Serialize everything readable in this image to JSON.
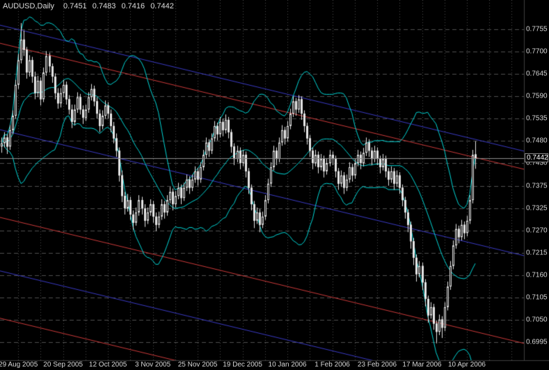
{
  "header": {
    "symbol_period": "AUDUSD,Daily",
    "ohlc": {
      "open": "0.7451",
      "high": "0.7483",
      "low": "0.7416",
      "close": "0.7442"
    }
  },
  "price_axis": {
    "current_price_badge": "0.7442"
  },
  "colors": {
    "background": "#000000",
    "grid": "#4f4f4f",
    "candle_outline": "#e6e6e6",
    "bull_fill": "#000000",
    "bear_fill": "#e6e6e6",
    "bands": "#00d8d8",
    "channel_red": "#cc3a3a",
    "channel_blue": "#3a3ac4",
    "text": "#d6d6d6",
    "bid_line": "#8c8c8c"
  },
  "chart_data": {
    "type": "candlestick",
    "symbol": "AUDUSD",
    "timeframe": "Daily",
    "title": "AUDUSD,Daily 0.7451 0.7483 0.7416 0.7442",
    "current_price": 0.7442,
    "current_ohlc": [
      0.7451,
      0.7483,
      0.7416,
      0.7442
    ],
    "grid": {
      "horizontal_style": "dashed",
      "vertical_style": "dotted"
    },
    "y_axis": {
      "top_price": 0.7755,
      "bottom_price": 0.6995,
      "ylim": [
        0.6985,
        0.7775
      ],
      "tick_labels": [
        "0.7755",
        "0.7700",
        "0.7645",
        "0.7590",
        "0.7535",
        "0.7480",
        "0.7430",
        "0.7375",
        "0.7325",
        "0.7270",
        "0.7215",
        "0.7160",
        "0.7105",
        "0.7050",
        "0.6995"
      ]
    },
    "x_axis": {
      "bars_total": 170,
      "bars_per_label": 16,
      "labels": [
        {
          "label": "29 Aug 2005",
          "bar": 6
        },
        {
          "label": "20 Sep 2005",
          "bar": 22
        },
        {
          "label": "12 Oct 2005",
          "bar": 38
        },
        {
          "label": "3 Nov 2005",
          "bar": 54
        },
        {
          "label": "25 Nov 2005",
          "bar": 70
        },
        {
          "label": "19 Dec 2005",
          "bar": 86
        },
        {
          "label": "10 Jan 2006",
          "bar": 102
        },
        {
          "label": "1 Feb 2006",
          "bar": 118
        },
        {
          "label": "23 Feb 2006",
          "bar": 134
        },
        {
          "label": "17 Mar 2006",
          "bar": 150
        },
        {
          "label": "10 Apr 2006",
          "bar": 166
        }
      ]
    },
    "overlays": {
      "bollinger_bands": {
        "period": 20,
        "deviation": 2,
        "color": "#00d8d8",
        "lines": [
          "upper",
          "middle",
          "lower"
        ]
      },
      "channel_lines": [
        {
          "color": "blue",
          "price_left": 0.7765,
          "price_right": 0.7459
        },
        {
          "color": "red",
          "price_left": 0.7721,
          "price_right": 0.7415
        },
        {
          "color": "blue",
          "price_left": 0.7511,
          "price_right": 0.7205
        },
        {
          "color": "red",
          "price_left": 0.7298,
          "price_right": 0.6992
        },
        {
          "color": "blue",
          "price_left": 0.7168,
          "price_right": 0.6862
        },
        {
          "color": "red",
          "price_left": 0.7053,
          "price_right": 0.6747
        }
      ]
    },
    "candles": [
      [
        0.747,
        0.7492,
        0.7455,
        0.7478
      ],
      [
        0.7478,
        0.7505,
        0.7468,
        0.7492
      ],
      [
        0.7492,
        0.75,
        0.7452,
        0.747
      ],
      [
        0.747,
        0.7522,
        0.7462,
        0.751
      ],
      [
        0.751,
        0.7558,
        0.75,
        0.7545
      ],
      [
        0.7545,
        0.7632,
        0.7538,
        0.762
      ],
      [
        0.762,
        0.7695,
        0.761,
        0.768
      ],
      [
        0.768,
        0.777,
        0.7672,
        0.773
      ],
      [
        0.773,
        0.7752,
        0.769,
        0.7705
      ],
      [
        0.7705,
        0.7712,
        0.7635,
        0.765
      ],
      [
        0.765,
        0.7692,
        0.764,
        0.768
      ],
      [
        0.768,
        0.7688,
        0.7625,
        0.764
      ],
      [
        0.764,
        0.7652,
        0.7585,
        0.76
      ],
      [
        0.76,
        0.7642,
        0.759,
        0.763
      ],
      [
        0.763,
        0.7638,
        0.757,
        0.7585
      ],
      [
        0.7585,
        0.7662,
        0.7578,
        0.765
      ],
      [
        0.765,
        0.7702,
        0.7642,
        0.769
      ],
      [
        0.769,
        0.7698,
        0.765,
        0.7665
      ],
      [
        0.7665,
        0.7672,
        0.7625,
        0.764
      ],
      [
        0.764,
        0.7648,
        0.7585,
        0.76
      ],
      [
        0.76,
        0.7612,
        0.7562,
        0.7575
      ],
      [
        0.7575,
        0.7612,
        0.7565,
        0.76
      ],
      [
        0.76,
        0.7632,
        0.759,
        0.762
      ],
      [
        0.762,
        0.7628,
        0.7572,
        0.7585
      ],
      [
        0.7585,
        0.7595,
        0.7548,
        0.756
      ],
      [
        0.756,
        0.7572,
        0.7515,
        0.753
      ],
      [
        0.753,
        0.7572,
        0.7522,
        0.756
      ],
      [
        0.756,
        0.7602,
        0.7552,
        0.759
      ],
      [
        0.759,
        0.7598,
        0.7548,
        0.756
      ],
      [
        0.756,
        0.757,
        0.7525,
        0.754
      ],
      [
        0.754,
        0.7572,
        0.7532,
        0.756
      ],
      [
        0.756,
        0.7602,
        0.7552,
        0.759
      ],
      [
        0.759,
        0.7622,
        0.7582,
        0.761
      ],
      [
        0.761,
        0.7618,
        0.7568,
        0.758
      ],
      [
        0.758,
        0.759,
        0.7538,
        0.755
      ],
      [
        0.755,
        0.756,
        0.7505,
        0.752
      ],
      [
        0.752,
        0.7558,
        0.7512,
        0.7545
      ],
      [
        0.7545,
        0.7582,
        0.7538,
        0.757
      ],
      [
        0.757,
        0.7578,
        0.7538,
        0.755
      ],
      [
        0.755,
        0.756,
        0.7505,
        0.752
      ],
      [
        0.752,
        0.753,
        0.7478,
        0.749
      ],
      [
        0.749,
        0.7502,
        0.7445,
        0.746
      ],
      [
        0.746,
        0.7468,
        0.7385,
        0.74
      ],
      [
        0.74,
        0.7412,
        0.7335,
        0.735
      ],
      [
        0.735,
        0.736,
        0.7305,
        0.732
      ],
      [
        0.732,
        0.7355,
        0.7312,
        0.734
      ],
      [
        0.734,
        0.7348,
        0.7292,
        0.7305
      ],
      [
        0.7305,
        0.7315,
        0.7268,
        0.7285
      ],
      [
        0.7285,
        0.7322,
        0.7278,
        0.731
      ],
      [
        0.731,
        0.7352,
        0.7302,
        0.734
      ],
      [
        0.734,
        0.7348,
        0.7305,
        0.732
      ],
      [
        0.732,
        0.733,
        0.7275,
        0.729
      ],
      [
        0.729,
        0.7322,
        0.7282,
        0.731
      ],
      [
        0.731,
        0.7342,
        0.7302,
        0.733
      ],
      [
        0.733,
        0.7338,
        0.7285,
        0.73
      ],
      [
        0.73,
        0.731,
        0.7265,
        0.728
      ],
      [
        0.728,
        0.7312,
        0.7272,
        0.73
      ],
      [
        0.73,
        0.7342,
        0.7292,
        0.733
      ],
      [
        0.733,
        0.7338,
        0.7295,
        0.731
      ],
      [
        0.731,
        0.7352,
        0.7302,
        0.734
      ],
      [
        0.734,
        0.7372,
        0.7332,
        0.736
      ],
      [
        0.736,
        0.7368,
        0.7315,
        0.733
      ],
      [
        0.733,
        0.7362,
        0.7322,
        0.735
      ],
      [
        0.735,
        0.7382,
        0.7342,
        0.737
      ],
      [
        0.737,
        0.7378,
        0.733,
        0.7345
      ],
      [
        0.7345,
        0.7382,
        0.7338,
        0.737
      ],
      [
        0.737,
        0.7402,
        0.7362,
        0.739
      ],
      [
        0.739,
        0.7398,
        0.7355,
        0.737
      ],
      [
        0.737,
        0.7402,
        0.7362,
        0.739
      ],
      [
        0.739,
        0.7422,
        0.7382,
        0.741
      ],
      [
        0.741,
        0.7418,
        0.7375,
        0.739
      ],
      [
        0.739,
        0.7432,
        0.7382,
        0.742
      ],
      [
        0.742,
        0.7462,
        0.7412,
        0.745
      ],
      [
        0.745,
        0.7492,
        0.7442,
        0.748
      ],
      [
        0.748,
        0.7488,
        0.7445,
        0.746
      ],
      [
        0.746,
        0.7502,
        0.7452,
        0.749
      ],
      [
        0.749,
        0.7532,
        0.7482,
        0.752
      ],
      [
        0.752,
        0.7528,
        0.7485,
        0.75
      ],
      [
        0.75,
        0.7542,
        0.7492,
        0.753
      ],
      [
        0.753,
        0.7538,
        0.7495,
        0.751
      ],
      [
        0.751,
        0.7548,
        0.7502,
        0.7535
      ],
      [
        0.7535,
        0.7542,
        0.749,
        0.7505
      ],
      [
        0.7505,
        0.7512,
        0.7455,
        0.747
      ],
      [
        0.747,
        0.7478,
        0.7425,
        0.744
      ],
      [
        0.744,
        0.7472,
        0.7432,
        0.746
      ],
      [
        0.746,
        0.7468,
        0.7415,
        0.743
      ],
      [
        0.743,
        0.7462,
        0.7422,
        0.745
      ],
      [
        0.745,
        0.7458,
        0.7395,
        0.741
      ],
      [
        0.741,
        0.7418,
        0.7355,
        0.737
      ],
      [
        0.737,
        0.7378,
        0.7315,
        0.733
      ],
      [
        0.733,
        0.7338,
        0.7272,
        0.729
      ],
      [
        0.729,
        0.7322,
        0.7282,
        0.731
      ],
      [
        0.731,
        0.7318,
        0.7262,
        0.728
      ],
      [
        0.728,
        0.7312,
        0.7272,
        0.73
      ],
      [
        0.73,
        0.7352,
        0.7292,
        0.734
      ],
      [
        0.734,
        0.7392,
        0.7332,
        0.738
      ],
      [
        0.738,
        0.7432,
        0.7372,
        0.742
      ],
      [
        0.742,
        0.7472,
        0.7412,
        0.746
      ],
      [
        0.746,
        0.7468,
        0.7425,
        0.744
      ],
      [
        0.744,
        0.7492,
        0.7432,
        0.748
      ],
      [
        0.748,
        0.7522,
        0.7472,
        0.751
      ],
      [
        0.751,
        0.7518,
        0.7475,
        0.749
      ],
      [
        0.749,
        0.7532,
        0.7482,
        0.752
      ],
      [
        0.752,
        0.7562,
        0.7512,
        0.755
      ],
      [
        0.755,
        0.7592,
        0.7542,
        0.758
      ],
      [
        0.758,
        0.7588,
        0.7545,
        0.756
      ],
      [
        0.756,
        0.7595,
        0.7552,
        0.7585
      ],
      [
        0.7585,
        0.7592,
        0.7535,
        0.755
      ],
      [
        0.755,
        0.7558,
        0.7505,
        0.752
      ],
      [
        0.752,
        0.7528,
        0.7475,
        0.749
      ],
      [
        0.749,
        0.7498,
        0.7445,
        0.746
      ],
      [
        0.746,
        0.7468,
        0.7415,
        0.743
      ],
      [
        0.743,
        0.7462,
        0.7422,
        0.745
      ],
      [
        0.745,
        0.7458,
        0.7405,
        0.742
      ],
      [
        0.742,
        0.7452,
        0.7412,
        0.744
      ],
      [
        0.744,
        0.7448,
        0.7395,
        0.741
      ],
      [
        0.741,
        0.7442,
        0.7402,
        0.743
      ],
      [
        0.743,
        0.7462,
        0.7422,
        0.745
      ],
      [
        0.745,
        0.7458,
        0.7425,
        0.744
      ],
      [
        0.744,
        0.7448,
        0.7395,
        0.741
      ],
      [
        0.741,
        0.7418,
        0.7365,
        0.738
      ],
      [
        0.738,
        0.7412,
        0.7372,
        0.74
      ],
      [
        0.74,
        0.7408,
        0.7355,
        0.737
      ],
      [
        0.737,
        0.7402,
        0.7362,
        0.739
      ],
      [
        0.739,
        0.7432,
        0.7382,
        0.742
      ],
      [
        0.742,
        0.7428,
        0.7385,
        0.74
      ],
      [
        0.74,
        0.7442,
        0.7392,
        0.743
      ],
      [
        0.743,
        0.7462,
        0.7422,
        0.745
      ],
      [
        0.745,
        0.7458,
        0.7415,
        0.743
      ],
      [
        0.743,
        0.7467,
        0.7422,
        0.7455
      ],
      [
        0.7455,
        0.7492,
        0.7447,
        0.748
      ],
      [
        0.748,
        0.7488,
        0.7445,
        0.746
      ],
      [
        0.746,
        0.7468,
        0.7425,
        0.744
      ],
      [
        0.744,
        0.7472,
        0.7432,
        0.746
      ],
      [
        0.746,
        0.7468,
        0.7425,
        0.744
      ],
      [
        0.744,
        0.7448,
        0.7405,
        0.742
      ],
      [
        0.742,
        0.7452,
        0.7412,
        0.744
      ],
      [
        0.744,
        0.7448,
        0.7395,
        0.741
      ],
      [
        0.741,
        0.7418,
        0.7375,
        0.739
      ],
      [
        0.739,
        0.7422,
        0.7382,
        0.741
      ],
      [
        0.741,
        0.7418,
        0.7365,
        0.738
      ],
      [
        0.738,
        0.7412,
        0.7372,
        0.74
      ],
      [
        0.74,
        0.7408,
        0.7355,
        0.737
      ],
      [
        0.737,
        0.7378,
        0.7325,
        0.734
      ],
      [
        0.734,
        0.7348,
        0.7295,
        0.731
      ],
      [
        0.731,
        0.7318,
        0.7262,
        0.728
      ],
      [
        0.728,
        0.7288,
        0.7222,
        0.724
      ],
      [
        0.724,
        0.7248,
        0.7182,
        0.72
      ],
      [
        0.72,
        0.7208,
        0.7142,
        0.716
      ],
      [
        0.716,
        0.7192,
        0.7152,
        0.718
      ],
      [
        0.718,
        0.7188,
        0.7122,
        0.714
      ],
      [
        0.714,
        0.7148,
        0.7082,
        0.71
      ],
      [
        0.71,
        0.7108,
        0.7042,
        0.706
      ],
      [
        0.706,
        0.7092,
        0.7052,
        0.708
      ],
      [
        0.708,
        0.7088,
        0.7025,
        0.704
      ],
      [
        0.704,
        0.7048,
        0.6992,
        0.702
      ],
      [
        0.702,
        0.7062,
        0.7012,
        0.705
      ],
      [
        0.705,
        0.7058,
        0.7005,
        0.703
      ],
      [
        0.703,
        0.7092,
        0.7022,
        0.708
      ],
      [
        0.708,
        0.7142,
        0.7072,
        0.713
      ],
      [
        0.713,
        0.7192,
        0.7122,
        0.718
      ],
      [
        0.718,
        0.7242,
        0.7172,
        0.723
      ],
      [
        0.723,
        0.7282,
        0.7222,
        0.727
      ],
      [
        0.727,
        0.7278,
        0.7235,
        0.725
      ],
      [
        0.725,
        0.7292,
        0.7242,
        0.728
      ],
      [
        0.728,
        0.7288,
        0.7245,
        0.726
      ],
      [
        0.726,
        0.7302,
        0.7252,
        0.729
      ],
      [
        0.729,
        0.7352,
        0.7282,
        0.734
      ],
      [
        0.734,
        0.7462,
        0.7332,
        0.745
      ],
      [
        0.7451,
        0.7483,
        0.7416,
        0.7442
      ]
    ]
  }
}
